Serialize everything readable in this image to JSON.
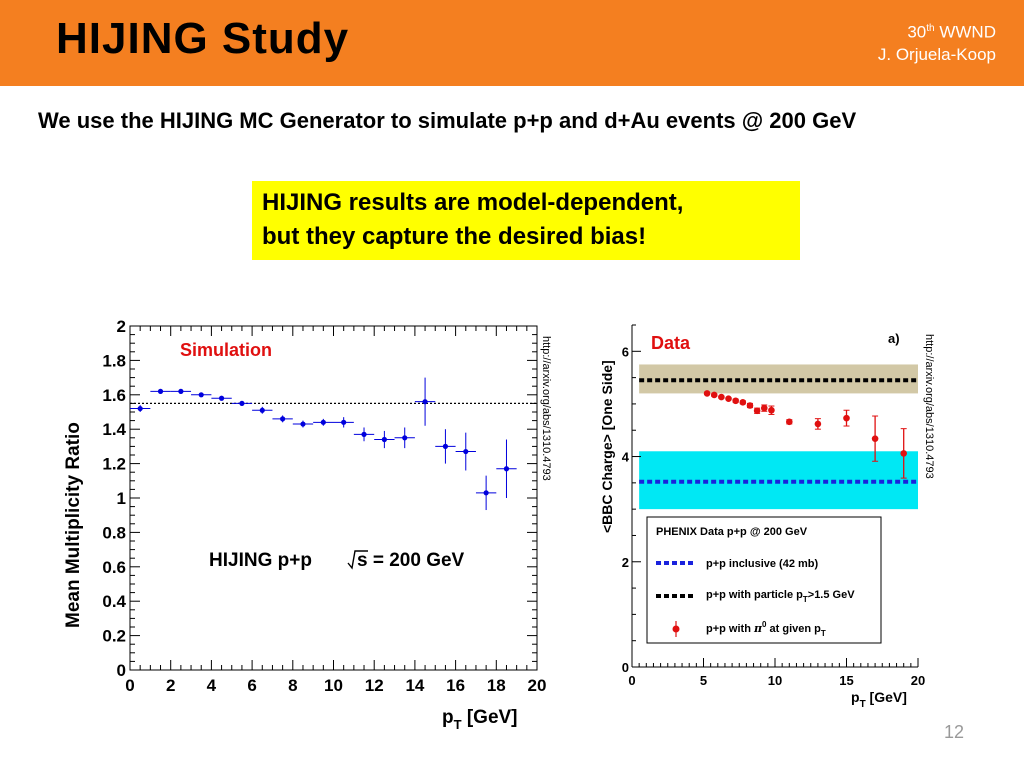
{
  "header": {
    "title": "HIJING Study",
    "conference_sup": "th",
    "conference_num": "30",
    "conference_name": "WWND",
    "author": "J. Orjuela-Koop",
    "accent_color": "#f47f20"
  },
  "subtitle": "We use the HIJING MC Generator to simulate p+p and d+Au events @ 200 GeV",
  "callout": {
    "line1": "HIJING results are model-dependent,",
    "line2": "but they capture the desired bias!",
    "color": "#ffff00"
  },
  "slide_number": "12",
  "chart_data": [
    {
      "type": "scatter",
      "tag": "Simulation",
      "annotation": "HIJING p+p √s = 200 GeV",
      "annotation_pre": "HIJING p+p ",
      "annotation_post": "s = 200 GeV",
      "ylabel": "Mean Multiplicity Ratio",
      "xlabel_main": "p",
      "xlabel_sub": "T",
      "xlabel_unit": " [GeV]",
      "xlim": [
        0,
        20
      ],
      "ylim": [
        0,
        2
      ],
      "xticks": [
        "0",
        "2",
        "4",
        "6",
        "8",
        "10",
        "12",
        "14",
        "16",
        "18",
        "20"
      ],
      "yticks": [
        "0",
        "0.2",
        "0.4",
        "0.6",
        "0.8",
        "1",
        "1.2",
        "1.4",
        "1.6",
        "1.8",
        "2"
      ],
      "reference_line": 1.55,
      "source_url": "http://arxiv.org/abs/1310.4793",
      "marker_color": "#0000dd",
      "points": [
        {
          "x": 0.5,
          "y": 1.52,
          "err": 0.02
        },
        {
          "x": 1.5,
          "y": 1.62,
          "err": 0.01
        },
        {
          "x": 2.5,
          "y": 1.62,
          "err": 0.01
        },
        {
          "x": 3.5,
          "y": 1.6,
          "err": 0.01
        },
        {
          "x": 4.5,
          "y": 1.58,
          "err": 0.01
        },
        {
          "x": 5.5,
          "y": 1.55,
          "err": 0.01
        },
        {
          "x": 6.5,
          "y": 1.51,
          "err": 0.02
        },
        {
          "x": 7.5,
          "y": 1.46,
          "err": 0.02
        },
        {
          "x": 8.5,
          "y": 1.43,
          "err": 0.02
        },
        {
          "x": 9.5,
          "y": 1.44,
          "err": 0.02
        },
        {
          "x": 10.5,
          "y": 1.44,
          "err": 0.03
        },
        {
          "x": 11.5,
          "y": 1.37,
          "err": 0.04
        },
        {
          "x": 12.5,
          "y": 1.34,
          "err": 0.05
        },
        {
          "x": 13.5,
          "y": 1.35,
          "err": 0.06
        },
        {
          "x": 14.5,
          "y": 1.56,
          "err": 0.14
        },
        {
          "x": 15.5,
          "y": 1.3,
          "err": 0.1
        },
        {
          "x": 16.5,
          "y": 1.27,
          "err": 0.11
        },
        {
          "x": 17.5,
          "y": 1.03,
          "err": 0.1
        },
        {
          "x": 18.5,
          "y": 1.17,
          "err": 0.17
        }
      ]
    },
    {
      "type": "scatter",
      "tag": "Data",
      "panel_label": "a)",
      "ylabel": "<BBC Charge> [One Side]",
      "xlabel_main": "p",
      "xlabel_sub": "T",
      "xlabel_unit": " [GeV]",
      "xlim": [
        0,
        20
      ],
      "ylim": [
        0,
        6.5
      ],
      "xticks": [
        "0",
        "5",
        "10",
        "15",
        "20"
      ],
      "yticks": [
        "0",
        "2",
        "4",
        "6"
      ],
      "source_url": "http://arxiv.org/abs/1310.4793",
      "bands": [
        {
          "name": "p+p inclusive (42 mb)",
          "center": 3.52,
          "low": 3.0,
          "high": 4.1,
          "band_color": "#00e8f4",
          "line_color": "#1a22dd"
        },
        {
          "name": "p+p with particle pT>1.5 GeV",
          "center": 5.45,
          "low": 5.2,
          "high": 5.75,
          "band_color": "#d2c8a6",
          "line_color": "#000000"
        }
      ],
      "legend": {
        "title": "PHENIX Data p+p @ 200 GeV",
        "item1": "p+p inclusive (42 mb)",
        "item2_pre": "p+p with particle p",
        "item2_sub": "T",
        "item2_post": ">1.5 GeV",
        "item3_pre": "p+p with ",
        "item3_pi": "π",
        "item3_sup": "0",
        "item3_mid": " at given p",
        "item3_sub": "T"
      },
      "marker_color": "#e01010",
      "points": [
        {
          "x": 5.25,
          "y": 5.2,
          "err": 0.02
        },
        {
          "x": 5.75,
          "y": 5.17,
          "err": 0.02
        },
        {
          "x": 6.25,
          "y": 5.13,
          "err": 0.02
        },
        {
          "x": 6.75,
          "y": 5.1,
          "err": 0.02
        },
        {
          "x": 7.25,
          "y": 5.06,
          "err": 0.03
        },
        {
          "x": 7.75,
          "y": 5.03,
          "err": 0.03
        },
        {
          "x": 8.25,
          "y": 4.97,
          "err": 0.04
        },
        {
          "x": 8.75,
          "y": 4.87,
          "err": 0.05
        },
        {
          "x": 9.25,
          "y": 4.92,
          "err": 0.06
        },
        {
          "x": 9.75,
          "y": 4.88,
          "err": 0.08
        },
        {
          "x": 11.0,
          "y": 4.66,
          "err": 0.04
        },
        {
          "x": 13.0,
          "y": 4.62,
          "err": 0.1
        },
        {
          "x": 15.0,
          "y": 4.73,
          "err": 0.15
        },
        {
          "x": 17.0,
          "y": 4.34,
          "err": 0.43
        },
        {
          "x": 19.0,
          "y": 4.06,
          "err": 0.47
        }
      ]
    }
  ]
}
